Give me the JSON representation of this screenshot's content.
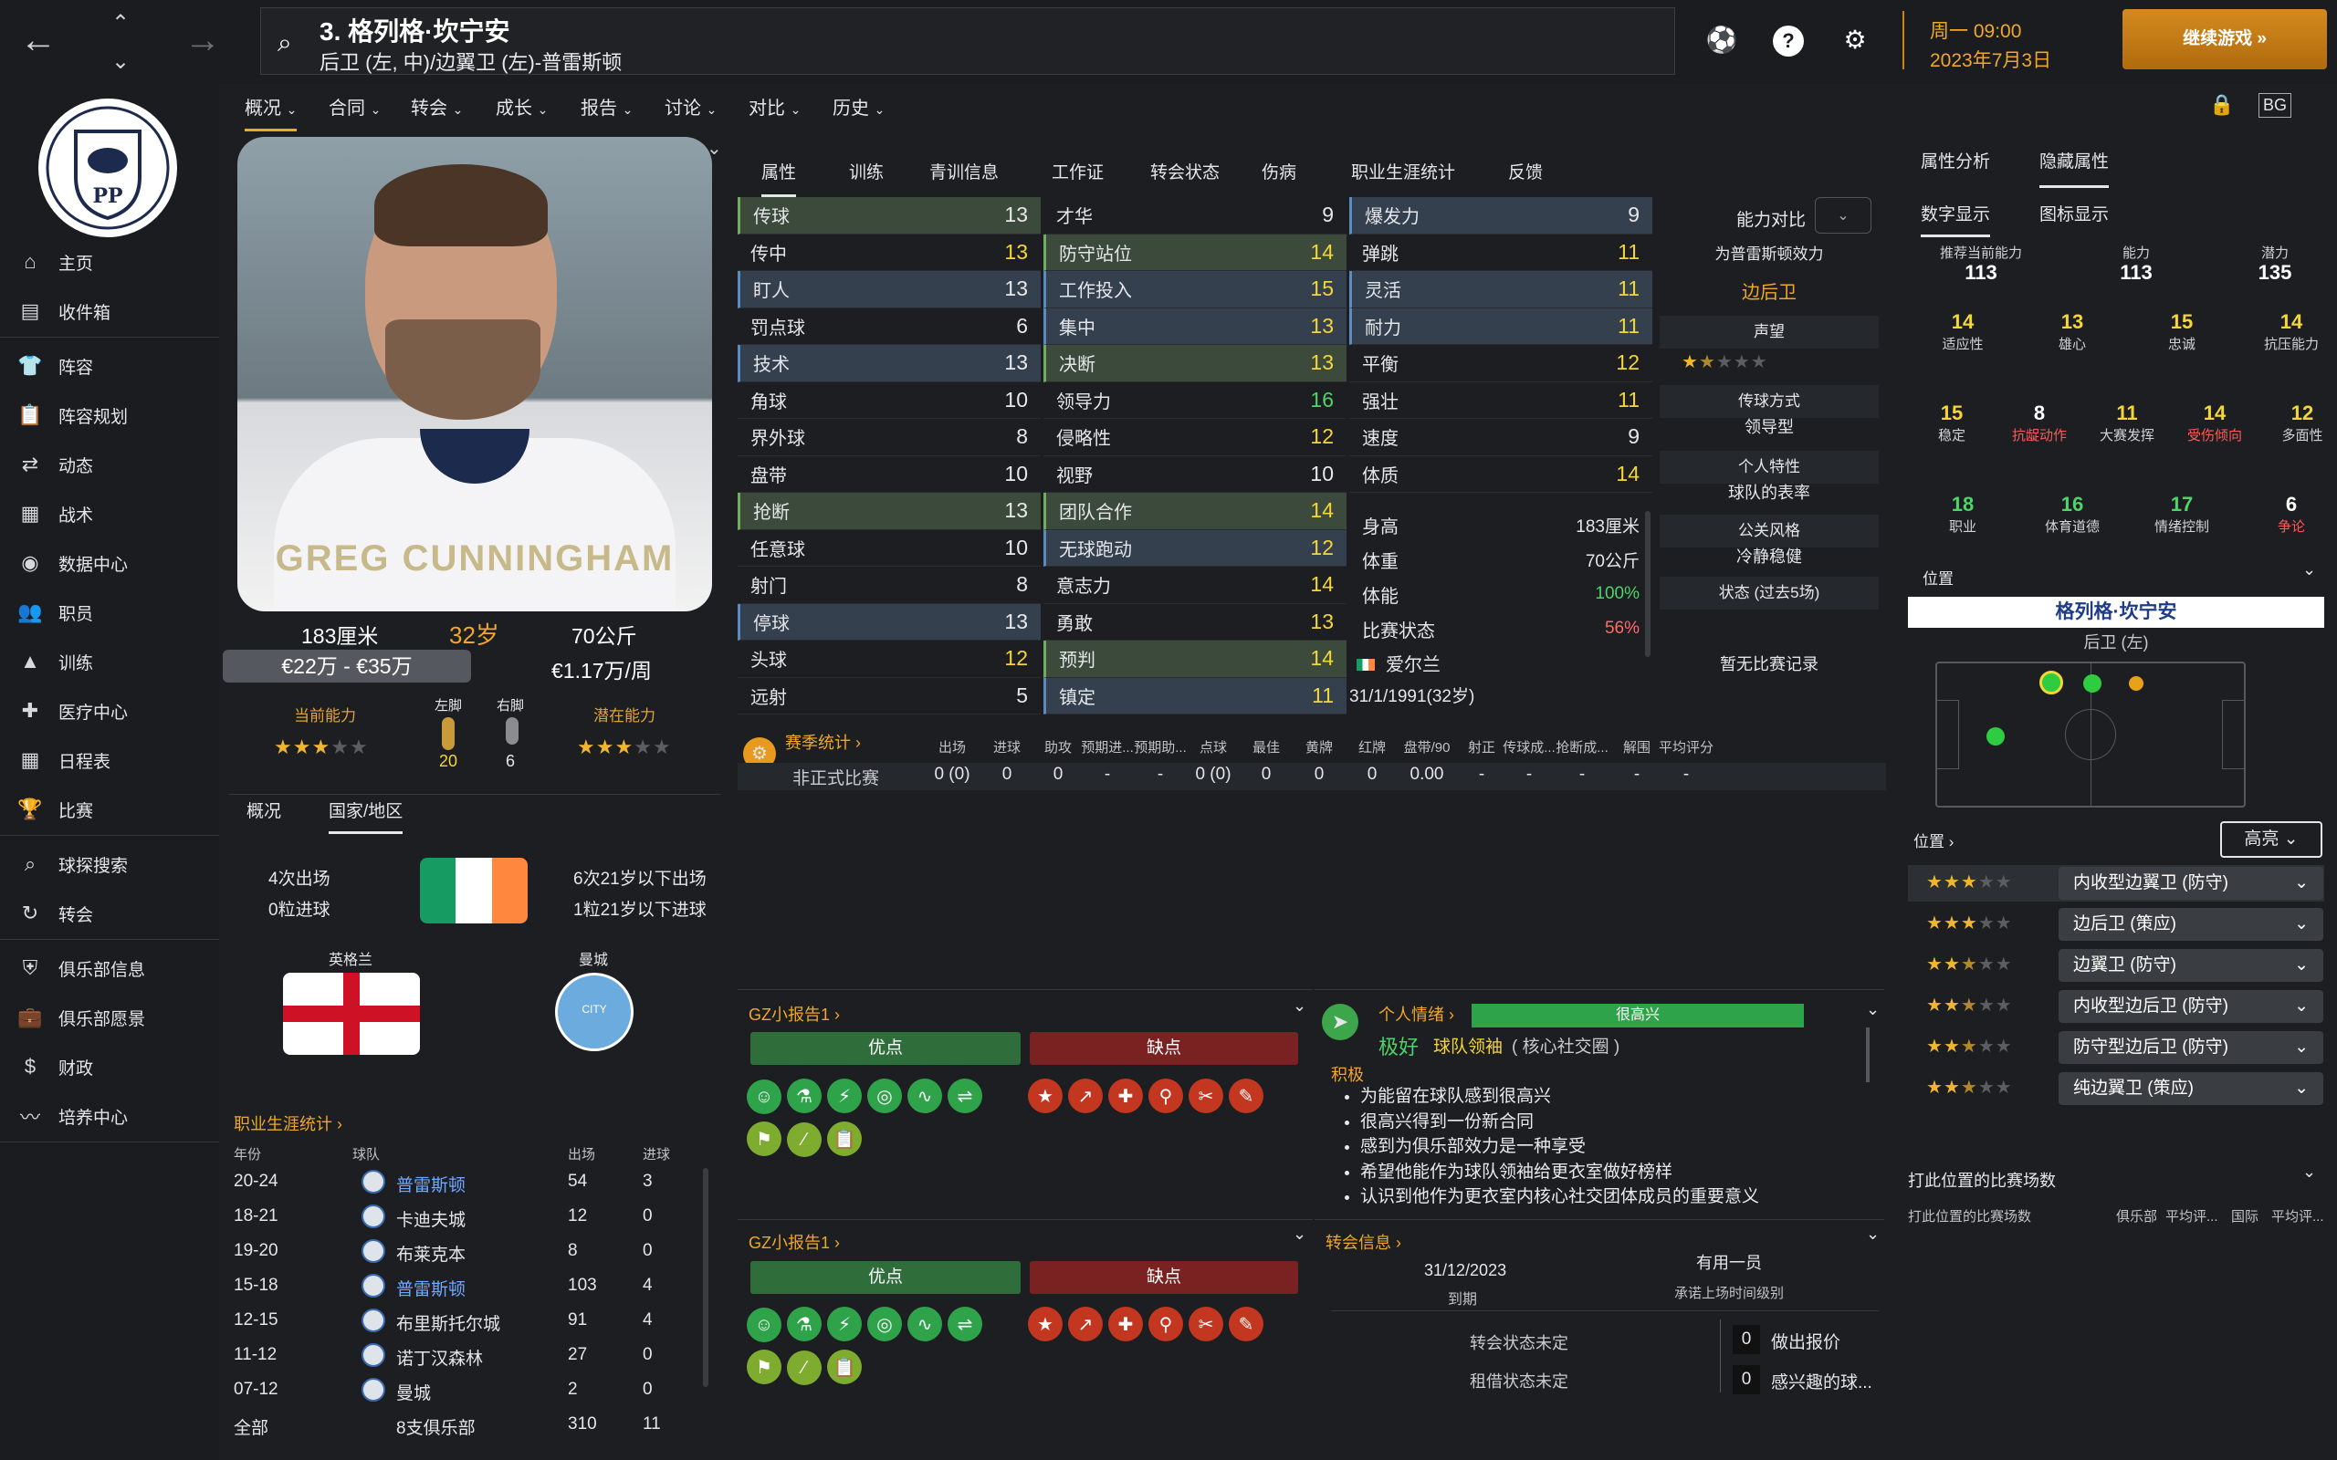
{
  "topbar": {
    "title": "3. 格列格·坎宁安",
    "subtitle": "后卫 (左, 中)/边翼卫 (左)-普雷斯顿",
    "date_line1": "周一 09:00",
    "date_line2": "2023年7月3日",
    "continue_label": "继续游戏 »",
    "back_icon": "arrow-left-icon",
    "fwd_icon": "arrow-right-icon"
  },
  "sidebar": {
    "crest_text": "PP",
    "items": [
      {
        "label": "主页",
        "icon": "home-icon"
      },
      {
        "label": "收件箱",
        "icon": "inbox-icon"
      },
      {
        "label": "阵容",
        "icon": "shirt-icon"
      },
      {
        "label": "阵容规划",
        "icon": "clipboard-icon"
      },
      {
        "label": "动态",
        "icon": "dynamics-icon"
      },
      {
        "label": "战术",
        "icon": "tactics-icon"
      },
      {
        "label": "数据中心",
        "icon": "data-icon"
      },
      {
        "label": "职员",
        "icon": "staff-icon"
      },
      {
        "label": "训练",
        "icon": "training-icon"
      },
      {
        "label": "医疗中心",
        "icon": "medical-icon"
      },
      {
        "label": "日程表",
        "icon": "calendar-icon"
      },
      {
        "label": "比赛",
        "icon": "trophy-icon"
      },
      {
        "label": "球探搜索",
        "icon": "search-icon"
      },
      {
        "label": "转会",
        "icon": "transfer-icon"
      },
      {
        "label": "俱乐部信息",
        "icon": "shield-icon"
      },
      {
        "label": "俱乐部愿景",
        "icon": "briefcase-icon"
      },
      {
        "label": "财政",
        "icon": "money-icon"
      },
      {
        "label": "培养中心",
        "icon": "development-icon"
      }
    ]
  },
  "subtabs": [
    "概况",
    "合同",
    "转会",
    "成长",
    "报告",
    "讨论",
    "对比",
    "历史"
  ],
  "player": {
    "watermark": "GREG CUNNINGHAM",
    "height": "183厘米",
    "age": "32岁",
    "weight": "70公斤",
    "value": "€22万 - €35万",
    "wage": "€1.17万/周",
    "ca_label": "当前能力",
    "left_foot_label": "左脚",
    "right_foot_label": "右脚",
    "pa_label": "潜在能力",
    "left_foot_val": "20",
    "right_foot_val": "6",
    "ca_stars": 3,
    "pa_stars": 3
  },
  "nation": {
    "tabs": [
      "概况",
      "国家/地区"
    ],
    "caps": "4次出场",
    "goals": "0粒进球",
    "u21_caps": "6次21岁以下出场",
    "u21_goals": "1粒21岁以下进球",
    "eng_label": "英格兰",
    "city_label": "曼城",
    "city_crest_text": "CITY"
  },
  "career": {
    "title": "职业生涯统计 ›",
    "headers": [
      "年份",
      "球队",
      "出场",
      "进球"
    ],
    "rows": [
      [
        "20-24",
        "普雷斯顿",
        "54",
        "3"
      ],
      [
        "18-21",
        "卡迪夫城",
        "12",
        "0"
      ],
      [
        "19-20",
        "布莱克本",
        "8",
        "0"
      ],
      [
        "15-18",
        "普雷斯顿",
        "103",
        "4"
      ],
      [
        "12-15",
        "布里斯托尔城",
        "91",
        "4"
      ],
      [
        "11-12",
        "诺丁汉森林",
        "27",
        "0"
      ],
      [
        "07-12",
        "曼城",
        "2",
        "0"
      ],
      [
        "全部",
        "8支俱乐部",
        "310",
        "11"
      ]
    ]
  },
  "attrtabs": [
    "属性",
    "训练",
    "青训信息",
    "工作证",
    "转会状态",
    "伤病",
    "职业生涯统计",
    "反馈"
  ],
  "attrs": {
    "tech": [
      [
        "传球",
        "13",
        "w",
        "g"
      ],
      [
        "传中",
        "13",
        "y",
        ""
      ],
      [
        "盯人",
        "13",
        "w",
        "b"
      ],
      [
        "罚点球",
        "6",
        "w",
        ""
      ],
      [
        "技术",
        "13",
        "w",
        "b"
      ],
      [
        "角球",
        "10",
        "w",
        ""
      ],
      [
        "界外球",
        "8",
        "w",
        ""
      ],
      [
        "盘带",
        "10",
        "w",
        ""
      ],
      [
        "抢断",
        "13",
        "w",
        "g"
      ],
      [
        "任意球",
        "10",
        "w",
        ""
      ],
      [
        "射门",
        "8",
        "w",
        ""
      ],
      [
        "停球",
        "13",
        "w",
        "b"
      ],
      [
        "头球",
        "12",
        "y",
        ""
      ],
      [
        "远射",
        "5",
        "w",
        ""
      ]
    ],
    "mental": [
      [
        "才华",
        "9",
        "w",
        ""
      ],
      [
        "防守站位",
        "14",
        "y",
        "g"
      ],
      [
        "工作投入",
        "15",
        "y",
        "b"
      ],
      [
        "集中",
        "13",
        "y",
        "b"
      ],
      [
        "决断",
        "13",
        "y",
        "g"
      ],
      [
        "领导力",
        "16",
        "g",
        ""
      ],
      [
        "侵略性",
        "12",
        "y",
        ""
      ],
      [
        "视野",
        "10",
        "w",
        ""
      ],
      [
        "团队合作",
        "14",
        "y",
        "g"
      ],
      [
        "无球跑动",
        "12",
        "y",
        "b"
      ],
      [
        "意志力",
        "14",
        "y",
        ""
      ],
      [
        "勇敢",
        "13",
        "y",
        ""
      ],
      [
        "预判",
        "14",
        "y",
        "g"
      ],
      [
        "镇定",
        "11",
        "y",
        "b"
      ]
    ],
    "phys": [
      [
        "爆发力",
        "9",
        "w",
        "b"
      ],
      [
        "弹跳",
        "11",
        "y",
        ""
      ],
      [
        "灵活",
        "11",
        "y",
        "b"
      ],
      [
        "耐力",
        "11",
        "y",
        "b"
      ],
      [
        "平衡",
        "12",
        "y",
        ""
      ],
      [
        "强壮",
        "11",
        "y",
        ""
      ],
      [
        "速度",
        "9",
        "w",
        ""
      ],
      [
        "体质",
        "14",
        "y",
        ""
      ]
    ],
    "body": [
      [
        "身高",
        "183厘米",
        "w"
      ],
      [
        "体重",
        "70公斤",
        "w"
      ],
      [
        "体能",
        "100%",
        "g"
      ],
      [
        "比赛状态",
        "56%",
        "r"
      ]
    ],
    "nationality": "爱尔兰",
    "dob": "31/1/1991(32岁)"
  },
  "compare": {
    "label": "能力对比",
    "effect": "为普雷斯顿效力",
    "role": "边后卫",
    "reputation": "声望",
    "rep_stars": 1.5,
    "pass_style": "传球方式",
    "leader": "领导型",
    "traits": "个人特性",
    "ratio": "球队的表率",
    "pr_style": "公关风格",
    "calm": "冷静稳健",
    "form": "状态 (过去5场)",
    "no_record": "暂无比赛记录"
  },
  "season": {
    "title": "赛季统计 ›",
    "headers": [
      "出场",
      "进球",
      "助攻",
      "预期进...",
      "预期助...",
      "点球",
      "最佳",
      "黄牌",
      "红牌",
      "盘带/90",
      "射正",
      "传球成...",
      "抢断成...",
      "解围",
      "平均评分"
    ],
    "row_label": "非正式比赛",
    "values": [
      "0 (0)",
      "0",
      "0",
      "-",
      "-",
      "0 (0)",
      "0",
      "0",
      "0",
      "0.00",
      "-",
      "-",
      "-",
      "-",
      "-"
    ]
  },
  "report1": {
    "title": "GZ小报告1 ›",
    "pros": "优点",
    "cons": "缺点"
  },
  "report2": {
    "title": "GZ小报告1 ›",
    "pros": "优点",
    "cons": "缺点"
  },
  "pro_icons": [
    "brain-icon",
    "flask-icon",
    "bolt-icon",
    "target-icon",
    "pulse-icon",
    "handshake-icon",
    "running-icon",
    "syringe-icon",
    "clipboard-icon"
  ],
  "con_icons": [
    "star-icon",
    "trend-icon",
    "cross-icon",
    "foot-icon",
    "knife-icon",
    "carrot-icon"
  ],
  "mood": {
    "title": "个人情绪 ›",
    "bar": "很高兴",
    "level": "极好",
    "role": "球队领袖",
    "role_note": "( 核心社交圈 )",
    "positive": "积极",
    "items": [
      "为能留在球队感到很高兴",
      "很高兴得到一份新合同",
      "感到为俱乐部效力是一种享受",
      "希望他能作为球队领袖给更衣室做好榜样",
      "认识到他作为更衣室内核心社交团体成员的重要意义"
    ]
  },
  "transfer": {
    "title": "转会信息 ›",
    "date": "31/12/2023",
    "date_label": "到期",
    "squad": "有用一员",
    "squad_label": "承诺上场时间级别",
    "status1": "转会状态未定",
    "status2": "租借状态未定",
    "offers": "0",
    "offers_label": "做出报价",
    "interest": "0",
    "interest_label": "感兴趣的球..."
  },
  "right": {
    "tabs": [
      "属性分析",
      "隐藏属性"
    ],
    "subtabs": [
      "数字显示",
      "图标显示"
    ],
    "ca_lbl": "推荐当前能力",
    "ca": "113",
    "abil_lbl": "能力",
    "abil": "113",
    "pot_lbl": "潜力",
    "pot": "135",
    "hidden": [
      [
        "14",
        "适应性",
        "y",
        "w"
      ],
      [
        "13",
        "雄心",
        "y",
        "w"
      ],
      [
        "15",
        "忠诚",
        "y",
        "w"
      ],
      [
        "14",
        "抗压能力",
        "y",
        "w"
      ],
      [
        "15",
        "稳定",
        "y",
        "w"
      ],
      [
        "8",
        "抗龊动作",
        "w",
        "r"
      ],
      [
        "11",
        "大赛发挥",
        "y",
        "w"
      ],
      [
        "14",
        "受伤倾向",
        "y",
        "r"
      ],
      [
        "12",
        "多面性",
        "y",
        "w"
      ],
      [
        "18",
        "职业",
        "g",
        "w"
      ],
      [
        "16",
        "体育道德",
        "g",
        "w"
      ],
      [
        "17",
        "情绪控制",
        "g",
        "w"
      ],
      [
        "6",
        "争论",
        "w",
        "r"
      ]
    ],
    "pos_title": "位置",
    "pos_name": "格列格·坎宁安",
    "pos_sub": "后卫 (左)",
    "pos_select": "位置 ›",
    "highlight": "高亮",
    "roles": [
      [
        "内收型边翼卫 (防守)",
        3
      ],
      [
        "边后卫 (策应)",
        3
      ],
      [
        "边翼卫 (防守)",
        2.5
      ],
      [
        "内收型边后卫 (防守)",
        2.5
      ],
      [
        "防守型边后卫 (防守)",
        2.5
      ],
      [
        "纯边翼卫 (策应)",
        2.5
      ]
    ],
    "played": "打此位置的比赛场数",
    "played_sub": "打此位置的比赛场数",
    "cols": [
      "俱乐部",
      "平均评...",
      "国际",
      "平均评..."
    ]
  }
}
